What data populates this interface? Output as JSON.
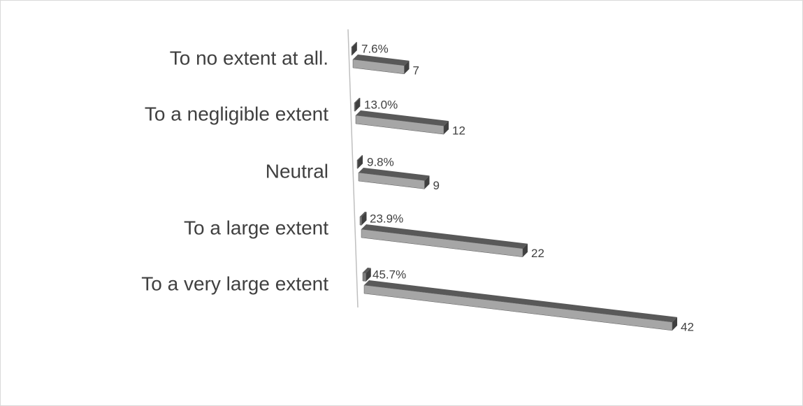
{
  "chart_data": {
    "type": "bar3d",
    "categories": [
      "To no extent at all.",
      "To a negligible extent",
      "Neutral",
      "To a large extent",
      "To a very large extent"
    ],
    "series": [
      {
        "color": "#7f7f7f",
        "values": [
          0.076,
          0.13,
          0.098,
          0.239,
          0.457
        ],
        "value_labels": [
          "7.6%",
          "13.0%",
          "9.8%",
          "23.9%",
          "45.7%"
        ]
      },
      {
        "color": "#a6a6a6",
        "values": [
          7,
          12,
          9,
          22,
          42
        ]
      }
    ]
  }
}
